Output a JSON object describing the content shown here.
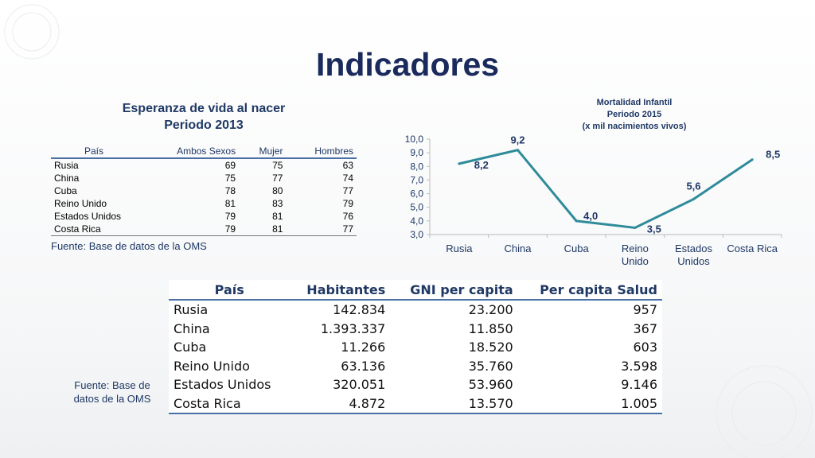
{
  "title": "Indicadores",
  "life_expectancy": {
    "title_line1": "Esperanza de vida al nacer",
    "title_line2": "Periodo 2013",
    "columns": [
      "País",
      "Ambos Sexos",
      "Mujer",
      "Hombres"
    ],
    "rows": [
      [
        "Rusia",
        "69",
        "75",
        "63"
      ],
      [
        "China",
        "75",
        "77",
        "74"
      ],
      [
        "Cuba",
        "78",
        "80",
        "77"
      ],
      [
        "Reino Unido",
        "81",
        "83",
        "79"
      ],
      [
        "Estados Unidos",
        "79",
        "81",
        "76"
      ],
      [
        "Costa Rica",
        "79",
        "81",
        "77"
      ]
    ],
    "source": "Fuente: Base de datos de la OMS"
  },
  "chart_data": {
    "type": "line",
    "title": "Mortalidad Infantil",
    "subtitle_line1": "Periodo 2015",
    "subtitle_line2": "(x mil nacimientos vivos)",
    "categories": [
      [
        "Rusia"
      ],
      [
        "China"
      ],
      [
        "Cuba"
      ],
      [
        "Reino",
        "Unido"
      ],
      [
        "Estados",
        "Unidos"
      ],
      [
        "Costa Rica"
      ]
    ],
    "values": [
      8.2,
      9.2,
      4.0,
      3.5,
      5.6,
      8.5
    ],
    "data_labels": [
      "8,2",
      "9,2",
      "4,0",
      "3,5",
      "5,6",
      "8,5"
    ],
    "ylim": [
      3.0,
      10.0
    ],
    "yticks": [
      "3,0",
      "4,0",
      "5,0",
      "6,0",
      "7,0",
      "8,0",
      "9,0",
      "10,0"
    ],
    "line_color": "#2e8b9a",
    "grid": false,
    "legend": "none"
  },
  "economy": {
    "columns": [
      "País",
      "Habitantes",
      "GNI per capita",
      "Per capita Salud"
    ],
    "rows": [
      [
        "Rusia",
        "142.834",
        "23.200",
        "957"
      ],
      [
        "China",
        "1.393.337",
        "11.850",
        "367"
      ],
      [
        "Cuba",
        "11.266",
        "18.520",
        "603"
      ],
      [
        "Reino Unido",
        "63.136",
        "35.760",
        "3.598"
      ],
      [
        "Estados Unidos",
        "320.051",
        "53.960",
        "9.146"
      ],
      [
        "Costa Rica",
        "4.872",
        "13.570",
        "1.005"
      ]
    ],
    "source_line1": "Fuente: Base de",
    "source_line2": "datos de la OMS"
  },
  "colors": {
    "title": "#1b2a5c",
    "accent": "#1f3864",
    "rule": "#4a6fa5"
  }
}
